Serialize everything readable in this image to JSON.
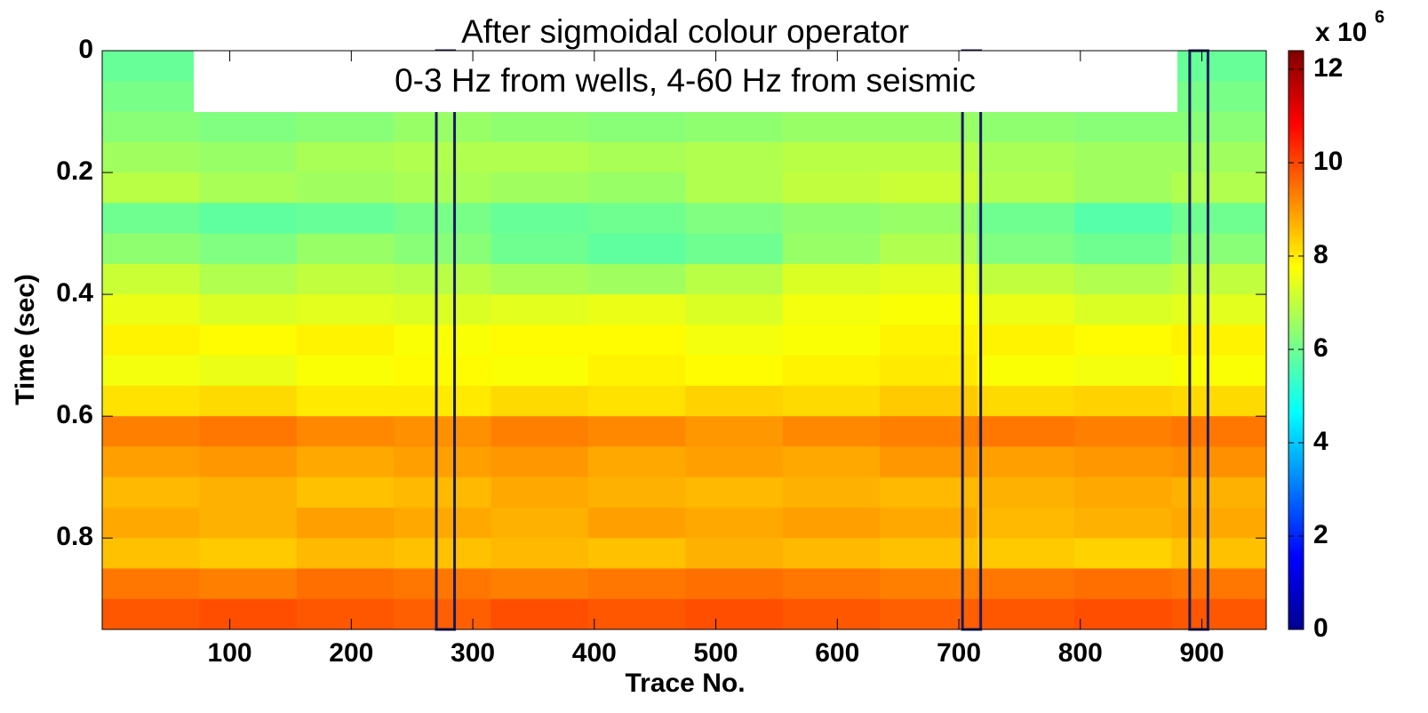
{
  "chart_data": {
    "type": "heatmap",
    "title": [
      "After sigmoidal colour operator",
      "0-3 Hz from wells,  4-60 Hz from seismic"
    ],
    "xlabel": "Trace No.",
    "ylabel": "Time (sec)",
    "xlim": [
      -5,
      953
    ],
    "ylim": [
      0,
      0.95
    ],
    "y_inverted": true,
    "xticks": [
      100,
      200,
      300,
      400,
      500,
      600,
      700,
      800,
      900
    ],
    "yticks": [
      0,
      0.2,
      0.4,
      0.6,
      0.8
    ],
    "x_edges": [
      -5,
      75,
      155,
      235,
      315,
      395,
      475,
      555,
      635,
      715,
      795,
      875,
      953
    ],
    "y_edges": [
      0,
      0.05,
      0.1,
      0.15,
      0.2,
      0.25,
      0.3,
      0.35,
      0.4,
      0.45,
      0.5,
      0.55,
      0.6,
      0.65,
      0.7,
      0.75,
      0.8,
      0.85,
      0.9,
      0.95
    ],
    "values": [
      [
        5.9,
        5.9,
        6.0,
        6.0,
        5.9,
        5.9,
        6.0,
        6.0,
        6.0,
        6.1,
        6.0,
        5.9
      ],
      [
        6.1,
        6.0,
        6.1,
        6.2,
        6.1,
        6.0,
        6.1,
        6.2,
        6.2,
        6.2,
        6.1,
        6.1
      ],
      [
        6.3,
        6.2,
        6.3,
        6.5,
        6.4,
        6.3,
        6.4,
        6.5,
        6.5,
        6.4,
        6.3,
        6.3
      ],
      [
        6.6,
        6.5,
        6.7,
        6.8,
        6.8,
        6.7,
        6.8,
        6.9,
        6.9,
        6.7,
        6.6,
        6.6
      ],
      [
        6.9,
        6.7,
        6.6,
        6.7,
        6.6,
        6.5,
        6.8,
        7.0,
        7.1,
        6.8,
        6.6,
        6.8
      ],
      [
        6.0,
        5.8,
        5.9,
        6.1,
        5.9,
        6.0,
        6.2,
        6.4,
        6.5,
        6.0,
        5.7,
        6.0
      ],
      [
        6.4,
        6.2,
        6.5,
        6.3,
        6.0,
        5.8,
        6.0,
        6.5,
        6.8,
        6.2,
        6.0,
        6.3
      ],
      [
        7.1,
        6.8,
        7.0,
        6.9,
        6.7,
        6.6,
        6.9,
        7.3,
        7.4,
        7.0,
        6.8,
        7.0
      ],
      [
        7.5,
        7.3,
        7.4,
        7.3,
        7.4,
        7.5,
        7.3,
        7.6,
        7.7,
        7.5,
        7.3,
        7.4
      ],
      [
        7.9,
        7.8,
        7.9,
        7.7,
        7.8,
        7.8,
        7.6,
        7.7,
        7.9,
        7.9,
        7.8,
        7.9
      ],
      [
        7.6,
        7.5,
        7.7,
        7.8,
        7.7,
        7.9,
        7.8,
        7.9,
        8.0,
        7.7,
        7.6,
        7.7
      ],
      [
        8.1,
        8.2,
        8.0,
        8.0,
        8.2,
        8.1,
        8.3,
        8.2,
        8.4,
        8.2,
        8.3,
        8.2
      ],
      [
        9.3,
        9.4,
        9.2,
        9.1,
        9.3,
        9.2,
        9.0,
        9.2,
        9.3,
        9.4,
        9.3,
        9.4
      ],
      [
        8.9,
        9.0,
        8.8,
        8.9,
        9.0,
        8.8,
        8.9,
        8.8,
        9.0,
        8.9,
        9.0,
        9.1
      ],
      [
        8.6,
        8.7,
        8.5,
        8.6,
        8.8,
        8.7,
        8.6,
        8.7,
        8.6,
        8.7,
        8.8,
        8.7
      ],
      [
        8.8,
        8.7,
        8.9,
        8.8,
        8.7,
        8.9,
        8.8,
        8.9,
        8.8,
        8.6,
        8.7,
        8.8
      ],
      [
        8.5,
        8.4,
        8.6,
        8.5,
        8.6,
        8.5,
        8.7,
        8.6,
        8.5,
        8.4,
        8.3,
        8.5
      ],
      [
        9.4,
        9.3,
        9.5,
        9.4,
        9.3,
        9.4,
        9.5,
        9.4,
        9.3,
        9.4,
        9.5,
        9.4
      ],
      [
        9.8,
        9.9,
        9.8,
        9.7,
        9.9,
        9.8,
        9.9,
        9.8,
        9.7,
        9.8,
        9.9,
        9.8
      ]
    ],
    "wells": [
      {
        "start": 270,
        "end": 285
      },
      {
        "start": 703,
        "end": 718
      },
      {
        "start": 890,
        "end": 905
      }
    ],
    "colormap": "jet",
    "colorbar": {
      "lim": [
        0,
        12.4
      ],
      "ticks": [
        0,
        2,
        4,
        6,
        8,
        10,
        12
      ],
      "label": "x 10",
      "exponent": "6"
    }
  }
}
